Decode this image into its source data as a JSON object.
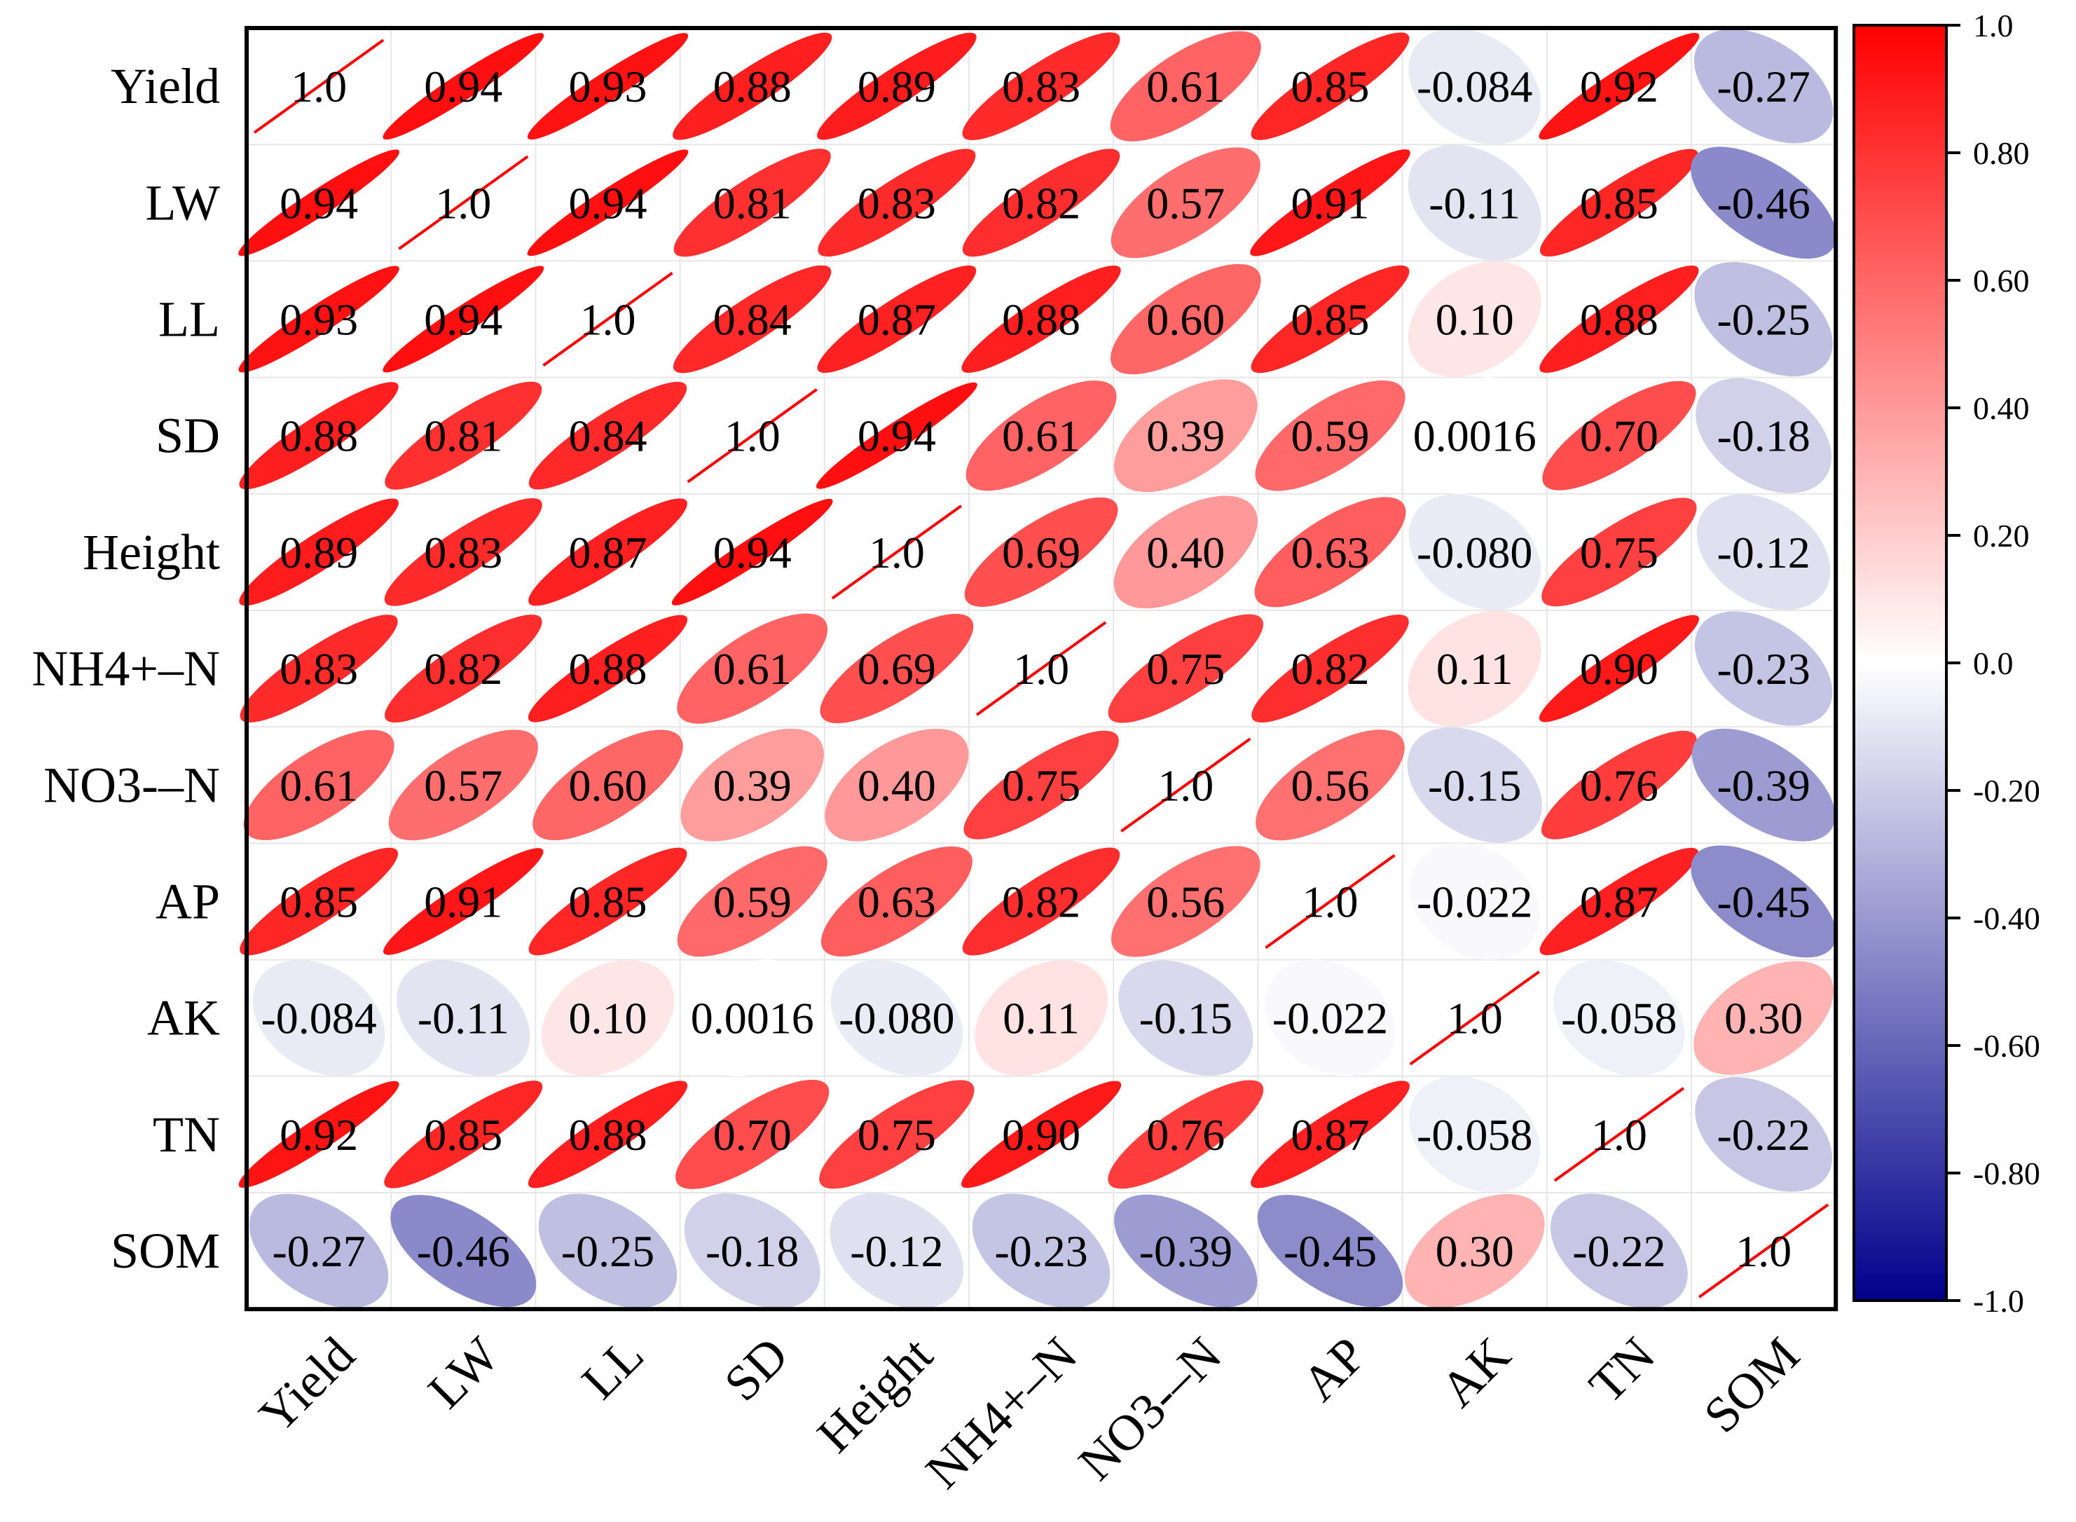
{
  "chart_data": {
    "type": "heatmap",
    "style": "ellipse-correlation-matrix",
    "title": "",
    "variables": [
      "Yield",
      "LW",
      "LL",
      "SD",
      "Height",
      "NH4+–N",
      "NO3-–N",
      "AP",
      "AK",
      "TN",
      "SOM"
    ],
    "col_labels": [
      "Yield",
      "LW",
      "LL",
      "SD",
      "Height",
      "NH4+–N",
      "NO3-–N",
      "AP",
      "AK",
      "TN",
      "SOM"
    ],
    "row_labels": [
      "Yield",
      "LW",
      "LL",
      "SD",
      "Height",
      "NH4+–N",
      "NO3‑–N",
      "AP",
      "AK",
      "TN",
      "SOM"
    ],
    "values": [
      [
        1.0,
        0.94,
        0.93,
        0.88,
        0.89,
        0.83,
        0.61,
        0.85,
        -0.084,
        0.92,
        -0.27
      ],
      [
        0.94,
        1.0,
        0.94,
        0.81,
        0.83,
        0.82,
        0.57,
        0.91,
        -0.11,
        0.85,
        -0.46
      ],
      [
        0.93,
        0.94,
        1.0,
        0.84,
        0.87,
        0.88,
        0.6,
        0.85,
        0.1,
        0.88,
        -0.25
      ],
      [
        0.88,
        0.81,
        0.84,
        1.0,
        0.94,
        0.61,
        0.39,
        0.59,
        0.0016,
        0.7,
        -0.18
      ],
      [
        0.89,
        0.83,
        0.87,
        0.94,
        1.0,
        0.69,
        0.4,
        0.63,
        -0.08,
        0.75,
        -0.12
      ],
      [
        0.83,
        0.82,
        0.88,
        0.61,
        0.69,
        1.0,
        0.75,
        0.82,
        0.11,
        0.9,
        -0.23
      ],
      [
        0.61,
        0.57,
        0.6,
        0.39,
        0.4,
        0.75,
        1.0,
        0.56,
        -0.15,
        0.76,
        -0.39
      ],
      [
        0.85,
        0.91,
        0.85,
        0.59,
        0.63,
        0.82,
        0.56,
        1.0,
        -0.022,
        0.87,
        -0.45
      ],
      [
        -0.084,
        -0.11,
        0.1,
        0.0016,
        -0.08,
        0.11,
        -0.15,
        -0.022,
        1.0,
        -0.058,
        0.3
      ],
      [
        0.92,
        0.85,
        0.88,
        0.7,
        0.75,
        0.9,
        0.76,
        0.87,
        -0.058,
        1.0,
        -0.22
      ],
      [
        -0.27,
        -0.46,
        -0.25,
        -0.18,
        -0.12,
        -0.23,
        -0.39,
        -0.45,
        0.3,
        -0.22,
        1.0
      ]
    ],
    "labels": [
      [
        "1.0",
        "0.94",
        "0.93",
        "0.88",
        "0.89",
        "0.83",
        "0.61",
        "0.85",
        "-0.084",
        "0.92",
        "-0.27"
      ],
      [
        "0.94",
        "1.0",
        "0.94",
        "0.81",
        "0.83",
        "0.82",
        "0.57",
        "0.91",
        "-0.11",
        "0.85",
        "-0.46"
      ],
      [
        "0.93",
        "0.94",
        "1.0",
        "0.84",
        "0.87",
        "0.88",
        "0.60",
        "0.85",
        "0.10",
        "0.88",
        "-0.25"
      ],
      [
        "0.88",
        "0.81",
        "0.84",
        "1.0",
        "0.94",
        "0.61",
        "0.39",
        "0.59",
        "0.0016",
        "0.70",
        "-0.18"
      ],
      [
        "0.89",
        "0.83",
        "0.87",
        "0.94",
        "1.0",
        "0.69",
        "0.40",
        "0.63",
        "-0.080",
        "0.75",
        "-0.12"
      ],
      [
        "0.83",
        "0.82",
        "0.88",
        "0.61",
        "0.69",
        "1.0",
        "0.75",
        "0.82",
        "0.11",
        "0.90",
        "-0.23"
      ],
      [
        "0.61",
        "0.57",
        "0.60",
        "0.39",
        "0.40",
        "0.75",
        "1.0",
        "0.56",
        "-0.15",
        "0.76",
        "-0.39"
      ],
      [
        "0.85",
        "0.91",
        "0.85",
        "0.59",
        "0.63",
        "0.82",
        "0.56",
        "1.0",
        "-0.022",
        "0.87",
        "-0.45"
      ],
      [
        "-0.084",
        "-0.11",
        "0.10",
        "0.0016",
        "-0.080",
        "0.11",
        "-0.15",
        "-0.022",
        "1.0",
        "-0.058",
        "0.30"
      ],
      [
        "0.92",
        "0.85",
        "0.88",
        "0.70",
        "0.75",
        "0.90",
        "0.76",
        "0.87",
        "-0.058",
        "1.0",
        "-0.22"
      ],
      [
        "-0.27",
        "-0.46",
        "-0.25",
        "-0.18",
        "-0.12",
        "-0.23",
        "-0.39",
        "-0.45",
        "0.30",
        "-0.22",
        "1.0"
      ]
    ],
    "colorbar": {
      "range": [
        -1.0,
        1.0
      ],
      "ticks": [
        1.0,
        0.8,
        0.6,
        0.4,
        0.2,
        0.0,
        -0.2,
        -0.4,
        -0.6,
        -0.8,
        -1.0
      ],
      "tick_labels": [
        "1.0",
        "0.80",
        "0.60",
        "0.40",
        "0.20",
        "0.0",
        "-0.20",
        "-0.40",
        "-0.60",
        "-0.80",
        "-1.0"
      ],
      "colors": {
        "low": "#00008b",
        "mid": "#ffffff",
        "high": "#ff0000"
      }
    }
  }
}
